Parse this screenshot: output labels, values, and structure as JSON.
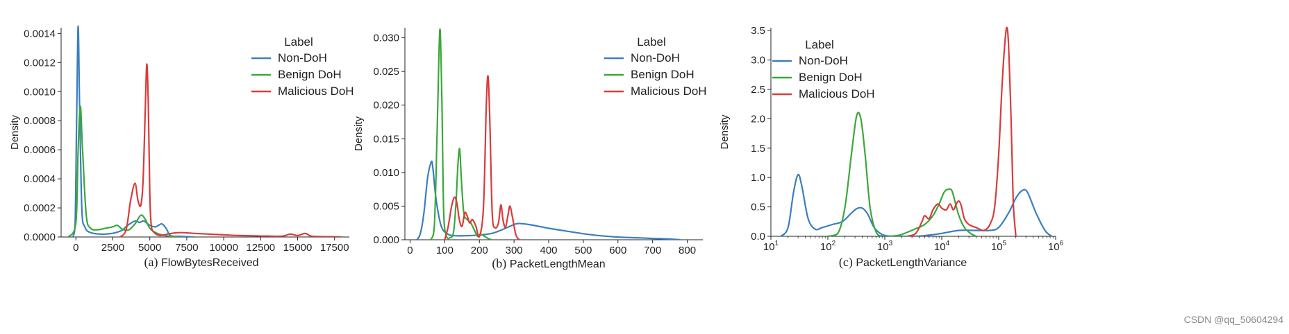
{
  "watermark": "CSDN @qq_50604294",
  "colors": {
    "non_doh": "#3a7ebf",
    "benign_doh": "#3aa83a",
    "malicious_doh": "#d93b3b"
  },
  "chart_data": [
    {
      "type": "line",
      "caption_prefix": "(a)",
      "xlabel": "FlowBytesReceived",
      "ylabel": "Density",
      "xlim": [
        -1000,
        18500
      ],
      "ylim": [
        0,
        0.00144
      ],
      "xticks": [
        0,
        2500,
        5000,
        7500,
        10000,
        12500,
        15000,
        17500
      ],
      "xtick_labels": [
        "0",
        "2500",
        "5000",
        "7500",
        "10000",
        "12500",
        "15000",
        "17500"
      ],
      "yticks": [
        0,
        0.0002,
        0.0004,
        0.0006,
        0.0008,
        0.001,
        0.0012,
        0.0014
      ],
      "ytick_labels": [
        "0.0000",
        "0.0002",
        "0.0004",
        "0.0006",
        "0.0008",
        "0.0010",
        "0.0012",
        "0.0014"
      ],
      "legend_title": "Label",
      "legend_position": "top-right",
      "series": [
        {
          "name": "Non-DoH",
          "color": "#3a7ebf",
          "x": [
            -200,
            -50,
            50,
            150,
            250,
            400,
            600,
            1000,
            2000,
            3000,
            3500,
            4000,
            4300,
            4600,
            5000,
            5400,
            5800,
            6100,
            6400,
            7000,
            8000
          ],
          "y": [
            0,
            0.0001,
            0.0008,
            0.00145,
            0.0009,
            0.0002,
            7e-05,
            3e-05,
            2e-05,
            4e-05,
            8e-05,
            0.00011,
            0.0001,
            0.00011,
            8e-05,
            7e-05,
            9e-05,
            6e-05,
            1e-05,
            5e-06,
            0
          ]
        },
        {
          "name": "Benign DoH",
          "color": "#3aa83a",
          "x": [
            -500,
            0,
            150,
            300,
            450,
            700,
            1000,
            1500,
            2000,
            2500,
            2800,
            3200,
            3600,
            4000,
            4400,
            4700,
            5000,
            5400,
            6000,
            6500,
            7000
          ],
          "y": [
            0,
            0.0001,
            0.0006,
            0.0009,
            0.0006,
            0.00015,
            6e-05,
            5e-05,
            6e-05,
            7e-05,
            8e-05,
            5e-05,
            5e-05,
            9e-05,
            0.00015,
            0.00012,
            6e-05,
            3e-05,
            1e-05,
            5e-06,
            0
          ]
        },
        {
          "name": "Malicious DoH",
          "color": "#d93b3b",
          "x": [
            3000,
            3400,
            3700,
            4000,
            4200,
            4400,
            4550,
            4700,
            4800,
            4900,
            5000,
            5100,
            5300,
            5700,
            6200,
            7000,
            8000,
            9000,
            10000,
            11000,
            12000,
            13000,
            14000,
            14500,
            15000,
            15500,
            15800,
            16000,
            16500,
            17000,
            18000
          ],
          "y": [
            0,
            5e-05,
            0.00025,
            0.00037,
            0.00025,
            0.00022,
            0.0004,
            0.0009,
            0.00119,
            0.0009,
            0.0003,
            8e-05,
            3e-05,
            1e-05,
            2e-05,
            3e-05,
            2.5e-05,
            2e-05,
            1.5e-05,
            1e-05,
            8e-06,
            6e-06,
            6e-06,
            2e-05,
            1e-05,
            2.5e-05,
            1e-05,
            5e-06,
            3e-06,
            2e-06,
            0
          ]
        }
      ]
    },
    {
      "type": "line",
      "caption_prefix": "(b)",
      "xlabel": "PacketLengthMean",
      "ylabel": "Density",
      "xlim": [
        -15,
        845
      ],
      "ylim": [
        0,
        0.0315
      ],
      "xticks": [
        0,
        100,
        200,
        300,
        400,
        500,
        600,
        700,
        800
      ],
      "xtick_labels": [
        "0",
        "100",
        "200",
        "300",
        "400",
        "500",
        "600",
        "700",
        "800"
      ],
      "yticks": [
        0,
        0.005,
        0.01,
        0.015,
        0.02,
        0.025,
        0.03
      ],
      "ytick_labels": [
        "0.000",
        "0.005",
        "0.010",
        "0.015",
        "0.020",
        "0.025",
        "0.030"
      ],
      "legend_title": "Label",
      "legend_position": "top-right",
      "series": [
        {
          "name": "Non-DoH",
          "color": "#3a7ebf",
          "x": [
            20,
            30,
            40,
            50,
            60,
            65,
            75,
            90,
            110,
            130,
            160,
            200,
            240,
            280,
            310,
            350,
            400,
            450,
            500,
            550,
            600,
            650,
            700,
            750,
            780
          ],
          "y": [
            0,
            0.001,
            0.004,
            0.009,
            0.0114,
            0.011,
            0.006,
            0.002,
            0.0008,
            0.0006,
            0.0006,
            0.0007,
            0.001,
            0.0018,
            0.0024,
            0.0022,
            0.0017,
            0.0013,
            0.0009,
            0.0006,
            0.0004,
            0.0003,
            0.0002,
            0.0001,
            0
          ]
        },
        {
          "name": "Benign DoH",
          "color": "#3aa83a",
          "x": [
            60,
            70,
            78,
            83,
            87,
            92,
            97,
            105,
            115,
            125,
            132,
            138,
            143,
            148,
            155,
            165,
            175,
            185,
            195,
            205,
            215,
            225,
            235
          ],
          "y": [
            0,
            0.002,
            0.016,
            0.027,
            0.031,
            0.02,
            0.004,
            0.0005,
            0.0003,
            0.001,
            0.005,
            0.011,
            0.0135,
            0.009,
            0.004,
            0.003,
            0.0025,
            0.0015,
            0.0005,
            0.0008,
            0.0005,
            0.0002,
            0
          ]
        },
        {
          "name": "Malicious DoH",
          "color": "#d93b3b",
          "x": [
            100,
            110,
            120,
            128,
            135,
            142,
            150,
            158,
            165,
            172,
            180,
            190,
            200,
            212,
            220,
            225,
            230,
            237,
            245,
            255,
            262,
            268,
            275,
            282,
            288,
            295,
            305,
            315
          ],
          "y": [
            0,
            0.002,
            0.005,
            0.0063,
            0.0055,
            0.003,
            0.002,
            0.004,
            0.0035,
            0.0025,
            0.003,
            0.002,
            0.0005,
            0.005,
            0.02,
            0.0243,
            0.018,
            0.004,
            0.0018,
            0.0025,
            0.0052,
            0.003,
            0.0018,
            0.0035,
            0.005,
            0.0035,
            0.0008,
            0
          ]
        }
      ]
    },
    {
      "type": "line",
      "caption_prefix": "(c)",
      "xlabel": "PacketLengthVariance",
      "ylabel": "Density",
      "xscale": "log",
      "xlim": [
        10,
        1000000
      ],
      "ylim": [
        0,
        3.55
      ],
      "xticks": [
        10,
        100,
        1000,
        10000,
        100000,
        1000000
      ],
      "xtick_labels": [
        "10",
        "10",
        "10",
        "10",
        "10",
        "10"
      ],
      "xtick_exponents": [
        "1",
        "2",
        "3",
        "4",
        "5",
        "6"
      ],
      "yticks": [
        0,
        0.5,
        1,
        1.5,
        2,
        2.5,
        3,
        3.5
      ],
      "ytick_labels": [
        "0.0",
        "0.5",
        "1.0",
        "1.5",
        "2.0",
        "2.5",
        "3.0",
        "3.5"
      ],
      "legend_title": "Label",
      "legend_position": "top-left",
      "series": [
        {
          "name": "Non-DoH",
          "color": "#3a7ebf",
          "x": [
            15,
            20,
            25,
            30,
            35,
            45,
            60,
            80,
            120,
            180,
            250,
            320,
            400,
            500,
            650,
            900,
            1300,
            2000,
            3500,
            6000,
            10000,
            20000,
            40000,
            70000,
            100000,
            150000,
            200000,
            260000,
            320000,
            450000,
            650000,
            850000
          ],
          "y": [
            0,
            0.15,
            0.75,
            1.05,
            0.85,
            0.3,
            0.12,
            0.15,
            0.2,
            0.25,
            0.38,
            0.47,
            0.48,
            0.38,
            0.15,
            0.03,
            0.0,
            0.0,
            0.0,
            0.02,
            0.05,
            0.1,
            0.1,
            0.1,
            0.15,
            0.4,
            0.65,
            0.78,
            0.75,
            0.4,
            0.1,
            0
          ]
        },
        {
          "name": "Benign DoH",
          "color": "#3aa83a",
          "x": [
            100,
            150,
            200,
            260,
            320,
            380,
            450,
            550,
            700,
            900,
            1200,
            1800,
            2500,
            3500,
            5000,
            7000,
            9000,
            11000,
            13000,
            15000,
            17000,
            20000,
            25000,
            32000,
            40000
          ],
          "y": [
            0,
            0.05,
            0.5,
            1.4,
            2.05,
            2.0,
            1.4,
            0.5,
            0.08,
            0.0,
            0.0,
            0.02,
            0.07,
            0.13,
            0.2,
            0.35,
            0.55,
            0.75,
            0.8,
            0.78,
            0.6,
            0.35,
            0.15,
            0.05,
            0
          ]
        },
        {
          "name": "Malicious DoH",
          "color": "#d93b3b",
          "x": [
            2500,
            3500,
            4500,
            5000,
            6000,
            7000,
            8500,
            10000,
            12000,
            14000,
            16000,
            18000,
            20000,
            22000,
            25000,
            30000,
            40000,
            55000,
            70000,
            85000,
            100000,
            115000,
            130000,
            140000,
            150000,
            165000,
            180000,
            200000
          ],
          "y": [
            0,
            0.05,
            0.25,
            0.35,
            0.3,
            0.45,
            0.55,
            0.48,
            0.45,
            0.55,
            0.45,
            0.55,
            0.6,
            0.52,
            0.3,
            0.2,
            0.15,
            0.1,
            0.2,
            0.5,
            1.4,
            2.6,
            3.35,
            3.55,
            3.2,
            2.0,
            0.6,
            0
          ]
        }
      ]
    }
  ]
}
